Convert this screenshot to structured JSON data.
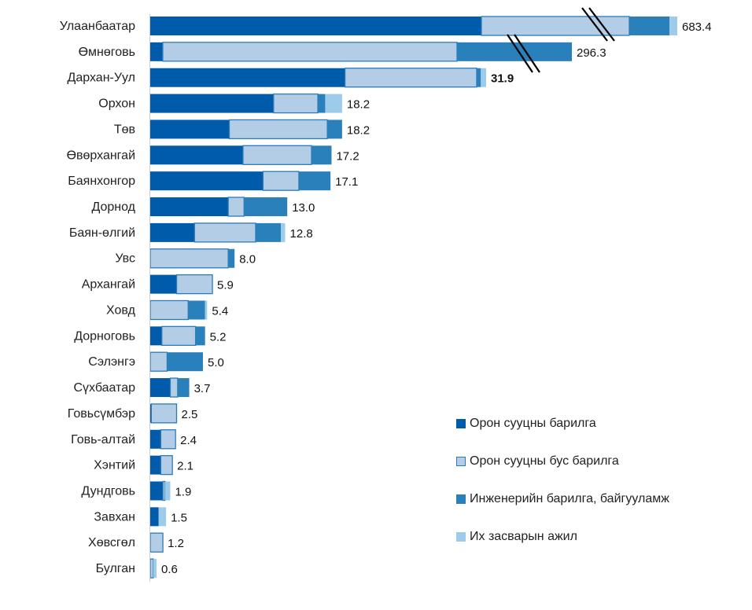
{
  "chart_data": {
    "type": "bar",
    "orientation": "horizontal",
    "stacked": true,
    "axis_break": true,
    "grid": false,
    "legend_position": "bottom-right",
    "categories": [
      "Улаанбаатар",
      "Өмнөговь",
      "Дархан-Уул",
      "Орхон",
      "Төв",
      "Өвөрхангай",
      "Баянхонгор",
      "Дорнод",
      "Баян-өлгий",
      "Увс",
      "Архангай",
      "Ховд",
      "Дорноговь",
      "Сэлэнгэ",
      "Сүхбаатар",
      "Говьсүмбэр",
      "Говь-алтай",
      "Хэнтий",
      "Дундговь",
      "Завхан",
      "Хөвсгөл",
      "Булган"
    ],
    "totals": [
      "683.4",
      "296.3",
      "31.9",
      "18.2",
      "18.2",
      "17.2",
      "17.1",
      "13.0",
      "12.8",
      "8.0",
      "5.9",
      "5.4",
      "5.2",
      "5.0",
      "3.7",
      "2.5",
      "2.4",
      "2.1",
      "1.9",
      "1.5",
      "1.2",
      "0.6"
    ],
    "series": [
      {
        "name": "Орон сууцны барилга",
        "color": "#005BAA",
        "values": [
          429.4,
          8.8,
          18.5,
          11.7,
          7.5,
          8.8,
          10.7,
          7.4,
          4.2,
          0,
          2.5,
          0,
          1.1,
          0,
          1.9,
          0.1,
          1.0,
          1.0,
          1.2,
          0.8,
          0,
          0
        ]
      },
      {
        "name": "Орон сууцны бус барилга",
        "color": "#B3CDE6",
        "values": [
          191.8,
          206.8,
          12.5,
          4.2,
          9.3,
          6.5,
          3.4,
          1.5,
          5.8,
          7.4,
          3.4,
          3.6,
          3.2,
          1.6,
          0.7,
          2.4,
          1.4,
          1.1,
          0.2,
          0,
          1.2,
          0.3
        ]
      },
      {
        "name": "Инженерийн барилга, байгууламж",
        "color": "#2A80BA",
        "values": [
          52.0,
          80.7,
          0.4,
          0.7,
          1.4,
          1.9,
          3.0,
          4.1,
          2.4,
          0.6,
          0,
          1.6,
          0.9,
          3.4,
          1.1,
          0,
          0,
          0,
          0,
          0,
          0,
          0
        ]
      },
      {
        "name": "Их засварын ажил",
        "color": "#9DCBEA",
        "values": [
          10.2,
          0,
          0.5,
          1.6,
          0,
          0,
          0,
          0,
          0.4,
          0,
          0,
          0.2,
          0,
          0,
          0,
          0,
          0,
          0,
          0.5,
          0.7,
          0,
          0.3
        ]
      }
    ]
  }
}
